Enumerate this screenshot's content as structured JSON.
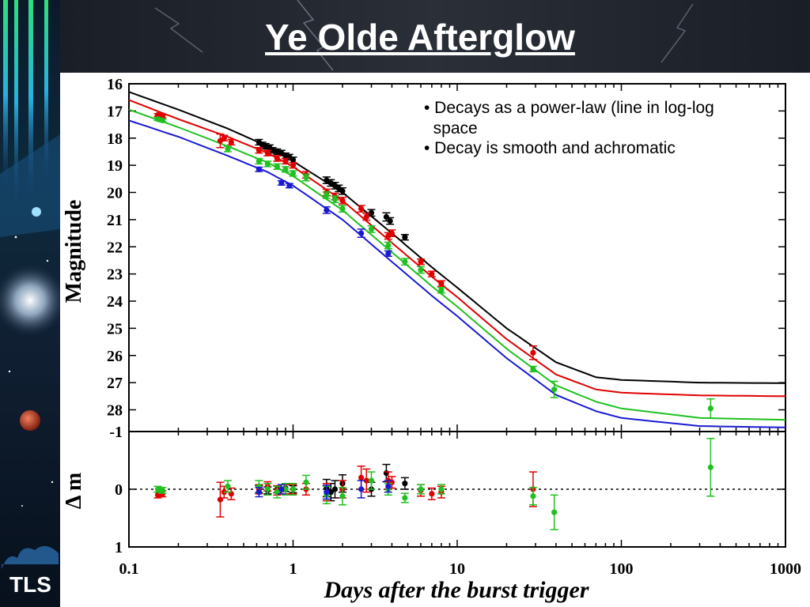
{
  "slide": {
    "title": "Ye Olde Afterglow",
    "logo": "TLS",
    "bullets": [
      "• Decays as a power-law (line in log-log\n  space",
      "• Decay is smooth and achromatic"
    ]
  },
  "chart_data": [
    {
      "type": "scatter",
      "panel": "light-curve",
      "ylabel": "Magnitude",
      "xscale": "log",
      "xlim": [
        0.1,
        1000
      ],
      "ylim": [
        28.8,
        16
      ],
      "y_inverted": true,
      "yticks": [
        16,
        17,
        18,
        19,
        20,
        21,
        22,
        23,
        24,
        25,
        26,
        27,
        28
      ],
      "ytick_labels": [
        "16",
        "17",
        "18",
        "19",
        "20",
        "21",
        "22",
        "23",
        "24",
        "25",
        "26",
        "27",
        "28"
      ],
      "series": [
        {
          "color": "#000000",
          "model": [
            [
              0.1,
              16.3
            ],
            [
              0.2,
              16.95
            ],
            [
              0.4,
              17.65
            ],
            [
              0.7,
              18.3
            ],
            [
              1,
              18.85
            ],
            [
              2,
              20
            ],
            [
              4,
              21.5
            ],
            [
              7,
              22.75
            ],
            [
              10,
              23.5
            ],
            [
              20,
              25
            ],
            [
              40,
              26.25
            ],
            [
              70,
              26.8
            ],
            [
              100,
              26.9
            ],
            [
              300,
              27
            ],
            [
              1000,
              27.02
            ]
          ],
          "points": [
            [
              0.62,
              18.15
            ],
            [
              0.65,
              18.25
            ],
            [
              0.68,
              18.3
            ],
            [
              0.72,
              18.35
            ],
            [
              0.75,
              18.45
            ],
            [
              0.8,
              18.5
            ],
            [
              0.85,
              18.55
            ],
            [
              0.9,
              18.65
            ],
            [
              0.95,
              18.7
            ],
            [
              1.0,
              18.8
            ],
            [
              1.6,
              19.55
            ],
            [
              1.7,
              19.65
            ],
            [
              1.8,
              19.75
            ],
            [
              1.9,
              19.85
            ],
            [
              2.0,
              19.95
            ],
            [
              3.0,
              20.75
            ],
            [
              3.7,
              20.9
            ],
            [
              3.9,
              21.05
            ],
            [
              4.8,
              21.65
            ]
          ],
          "err": [
            0.1,
            0.1,
            0.1,
            0.1,
            0.1,
            0.1,
            0.1,
            0.1,
            0.1,
            0.1,
            0.12,
            0.12,
            0.12,
            0.12,
            0.12,
            0.12,
            0.15,
            0.12,
            0.1
          ]
        },
        {
          "color": "#e00000",
          "model": [
            [
              0.1,
              16.6
            ],
            [
              0.2,
              17.3
            ],
            [
              0.4,
              17.95
            ],
            [
              0.7,
              18.55
            ],
            [
              1,
              19.05
            ],
            [
              2,
              20.3
            ],
            [
              4,
              21.85
            ],
            [
              7,
              23.1
            ],
            [
              10,
              23.85
            ],
            [
              20,
              25.4
            ],
            [
              40,
              26.7
            ],
            [
              70,
              27.25
            ],
            [
              100,
              27.37
            ],
            [
              300,
              27.47
            ],
            [
              1000,
              27.5
            ]
          ],
          "points": [
            [
              0.15,
              17.15
            ],
            [
              0.16,
              17.2
            ],
            [
              0.36,
              18.1
            ],
            [
              0.38,
              18.0
            ],
            [
              0.42,
              18.15
            ],
            [
              0.62,
              18.45
            ],
            [
              0.7,
              18.55
            ],
            [
              0.8,
              18.75
            ],
            [
              0.9,
              18.85
            ],
            [
              1.0,
              19.0
            ],
            [
              1.2,
              19.35
            ],
            [
              1.6,
              20.0
            ],
            [
              1.8,
              20.15
            ],
            [
              2.0,
              20.3
            ],
            [
              2.6,
              20.6
            ],
            [
              2.8,
              20.9
            ],
            [
              3.8,
              21.6
            ],
            [
              4.0,
              21.5
            ],
            [
              6.0,
              22.55
            ],
            [
              7.0,
              23.0
            ],
            [
              8.0,
              23.35
            ],
            [
              29,
              25.9
            ]
          ],
          "err": [
            0.05,
            0.05,
            0.25,
            0.1,
            0.1,
            0.1,
            0.1,
            0.1,
            0.1,
            0.1,
            0.12,
            0.12,
            0.12,
            0.12,
            0.12,
            0.12,
            0.12,
            0.12,
            0.1,
            0.1,
            0.1,
            0.25
          ]
        },
        {
          "color": "#20c020",
          "model": [
            [
              0.1,
              16.95
            ],
            [
              0.2,
              17.6
            ],
            [
              0.4,
              18.3
            ],
            [
              0.7,
              18.9
            ],
            [
              1,
              19.4
            ],
            [
              2,
              20.65
            ],
            [
              4,
              22.2
            ],
            [
              7,
              23.45
            ],
            [
              10,
              24.2
            ],
            [
              20,
              25.75
            ],
            [
              40,
              27.1
            ],
            [
              70,
              27.7
            ],
            [
              100,
              27.95
            ],
            [
              300,
              28.3
            ],
            [
              1000,
              28.37
            ]
          ],
          "points": [
            [
              0.15,
              17.3
            ],
            [
              0.16,
              17.35
            ],
            [
              0.4,
              18.4
            ],
            [
              0.62,
              18.85
            ],
            [
              0.7,
              18.95
            ],
            [
              0.8,
              19.05
            ],
            [
              0.9,
              19.15
            ],
            [
              1.0,
              19.3
            ],
            [
              1.2,
              19.45
            ],
            [
              1.6,
              20.1
            ],
            [
              1.8,
              20.25
            ],
            [
              2.0,
              20.6
            ],
            [
              3.0,
              21.35
            ],
            [
              3.8,
              21.95
            ],
            [
              4.8,
              22.55
            ],
            [
              6.0,
              22.85
            ],
            [
              8.0,
              23.6
            ],
            [
              29,
              26.5
            ],
            [
              39,
              27.25
            ],
            [
              350,
              27.95
            ]
          ],
          "err": [
            0.05,
            0.05,
            0.1,
            0.1,
            0.1,
            0.1,
            0.1,
            0.1,
            0.12,
            0.12,
            0.12,
            0.12,
            0.12,
            0.12,
            0.12,
            0.12,
            0.1,
            0.1,
            0.3,
            0.35
          ]
        },
        {
          "color": "#1a1ad0",
          "model": [
            [
              0.1,
              17.35
            ],
            [
              0.2,
              17.95
            ],
            [
              0.4,
              18.65
            ],
            [
              0.7,
              19.25
            ],
            [
              1,
              19.75
            ],
            [
              2,
              21.0
            ],
            [
              4,
              22.55
            ],
            [
              7,
              23.8
            ],
            [
              10,
              24.55
            ],
            [
              20,
              26.1
            ],
            [
              40,
              27.45
            ],
            [
              70,
              28.05
            ],
            [
              100,
              28.3
            ],
            [
              300,
              28.6
            ],
            [
              1000,
              28.65
            ]
          ],
          "points": [
            [
              0.62,
              19.15
            ],
            [
              0.85,
              19.65
            ],
            [
              0.95,
              19.75
            ],
            [
              1.6,
              20.65
            ],
            [
              2.6,
              21.5
            ],
            [
              3.8,
              22.25
            ]
          ],
          "err": [
            0.08,
            0.08,
            0.08,
            0.12,
            0.15,
            0.1
          ]
        }
      ]
    },
    {
      "type": "scatter",
      "panel": "residuals",
      "xlabel": "Days after the burst trigger",
      "ylabel": "Δ m",
      "xscale": "log",
      "xlim": [
        0.1,
        1000
      ],
      "ylim": [
        1,
        -1
      ],
      "y_inverted": true,
      "xticks": [
        0.1,
        1,
        10,
        100,
        1000
      ],
      "xtick_labels": [
        "0.1",
        "1",
        "10",
        "100",
        "1000"
      ],
      "yticks": [
        -1,
        0,
        1
      ],
      "ytick_labels": [
        "-1",
        "0",
        "1"
      ],
      "zero_line": "dotted",
      "series": [
        {
          "color": "#000000",
          "points": [
            [
              0.62,
              0.0
            ],
            [
              0.7,
              0.02
            ],
            [
              0.8,
              0.0
            ],
            [
              0.9,
              -0.02
            ],
            [
              1.0,
              0.0
            ],
            [
              1.6,
              -0.02
            ],
            [
              1.7,
              0.05
            ],
            [
              1.8,
              0.0
            ],
            [
              2.0,
              -0.1
            ],
            [
              3.0,
              0.0
            ],
            [
              3.7,
              -0.28
            ],
            [
              4.8,
              -0.1
            ]
          ],
          "err": [
            0.06,
            0.06,
            0.06,
            0.06,
            0.06,
            0.15,
            0.15,
            0.15,
            0.15,
            0.12,
            0.15,
            0.1
          ]
        },
        {
          "color": "#e00000",
          "points": [
            [
              0.15,
              0.1
            ],
            [
              0.16,
              0.08
            ],
            [
              0.36,
              0.18
            ],
            [
              0.38,
              0.05
            ],
            [
              0.42,
              0.08
            ],
            [
              0.62,
              0.0
            ],
            [
              0.7,
              -0.05
            ],
            [
              0.8,
              0.02
            ],
            [
              0.9,
              0.0
            ],
            [
              1.0,
              0.0
            ],
            [
              1.2,
              0.0
            ],
            [
              1.6,
              0.05
            ],
            [
              2.0,
              0.0
            ],
            [
              2.6,
              -0.2
            ],
            [
              2.8,
              -0.15
            ],
            [
              3.8,
              -0.15
            ],
            [
              4.0,
              -0.12
            ],
            [
              6.0,
              0.02
            ],
            [
              7.0,
              0.08
            ],
            [
              8.0,
              0.05
            ],
            [
              29,
              0.0
            ]
          ],
          "err": [
            0.05,
            0.05,
            0.3,
            0.1,
            0.1,
            0.08,
            0.08,
            0.08,
            0.08,
            0.08,
            0.1,
            0.15,
            0.15,
            0.2,
            0.2,
            0.15,
            0.1,
            0.1,
            0.1,
            0.1,
            0.3
          ]
        },
        {
          "color": "#20c020",
          "points": [
            [
              0.15,
              0.0
            ],
            [
              0.16,
              0.02
            ],
            [
              0.4,
              -0.05
            ],
            [
              0.62,
              -0.05
            ],
            [
              0.7,
              0.0
            ],
            [
              0.8,
              0.05
            ],
            [
              0.9,
              0.0
            ],
            [
              1.0,
              0.0
            ],
            [
              1.2,
              -0.12
            ],
            [
              1.6,
              0.1
            ],
            [
              2.0,
              0.12
            ],
            [
              3.0,
              -0.15
            ],
            [
              3.8,
              0.0
            ],
            [
              4.8,
              0.15
            ],
            [
              6.0,
              0.0
            ],
            [
              8.0,
              0.0
            ],
            [
              29,
              0.12
            ],
            [
              39,
              0.4
            ],
            [
              350,
              -0.38
            ]
          ],
          "err": [
            0.05,
            0.05,
            0.1,
            0.1,
            0.1,
            0.1,
            0.1,
            0.1,
            0.12,
            0.15,
            0.15,
            0.15,
            0.1,
            0.08,
            0.08,
            0.08,
            0.15,
            0.3,
            0.5
          ]
        },
        {
          "color": "#1a1ad0",
          "points": [
            [
              0.62,
              0.05
            ],
            [
              0.85,
              0.0
            ],
            [
              1.6,
              0.05
            ],
            [
              2.6,
              0.0
            ],
            [
              3.8,
              -0.05
            ]
          ],
          "err": [
            0.08,
            0.08,
            0.12,
            0.15,
            0.1
          ]
        }
      ]
    }
  ]
}
